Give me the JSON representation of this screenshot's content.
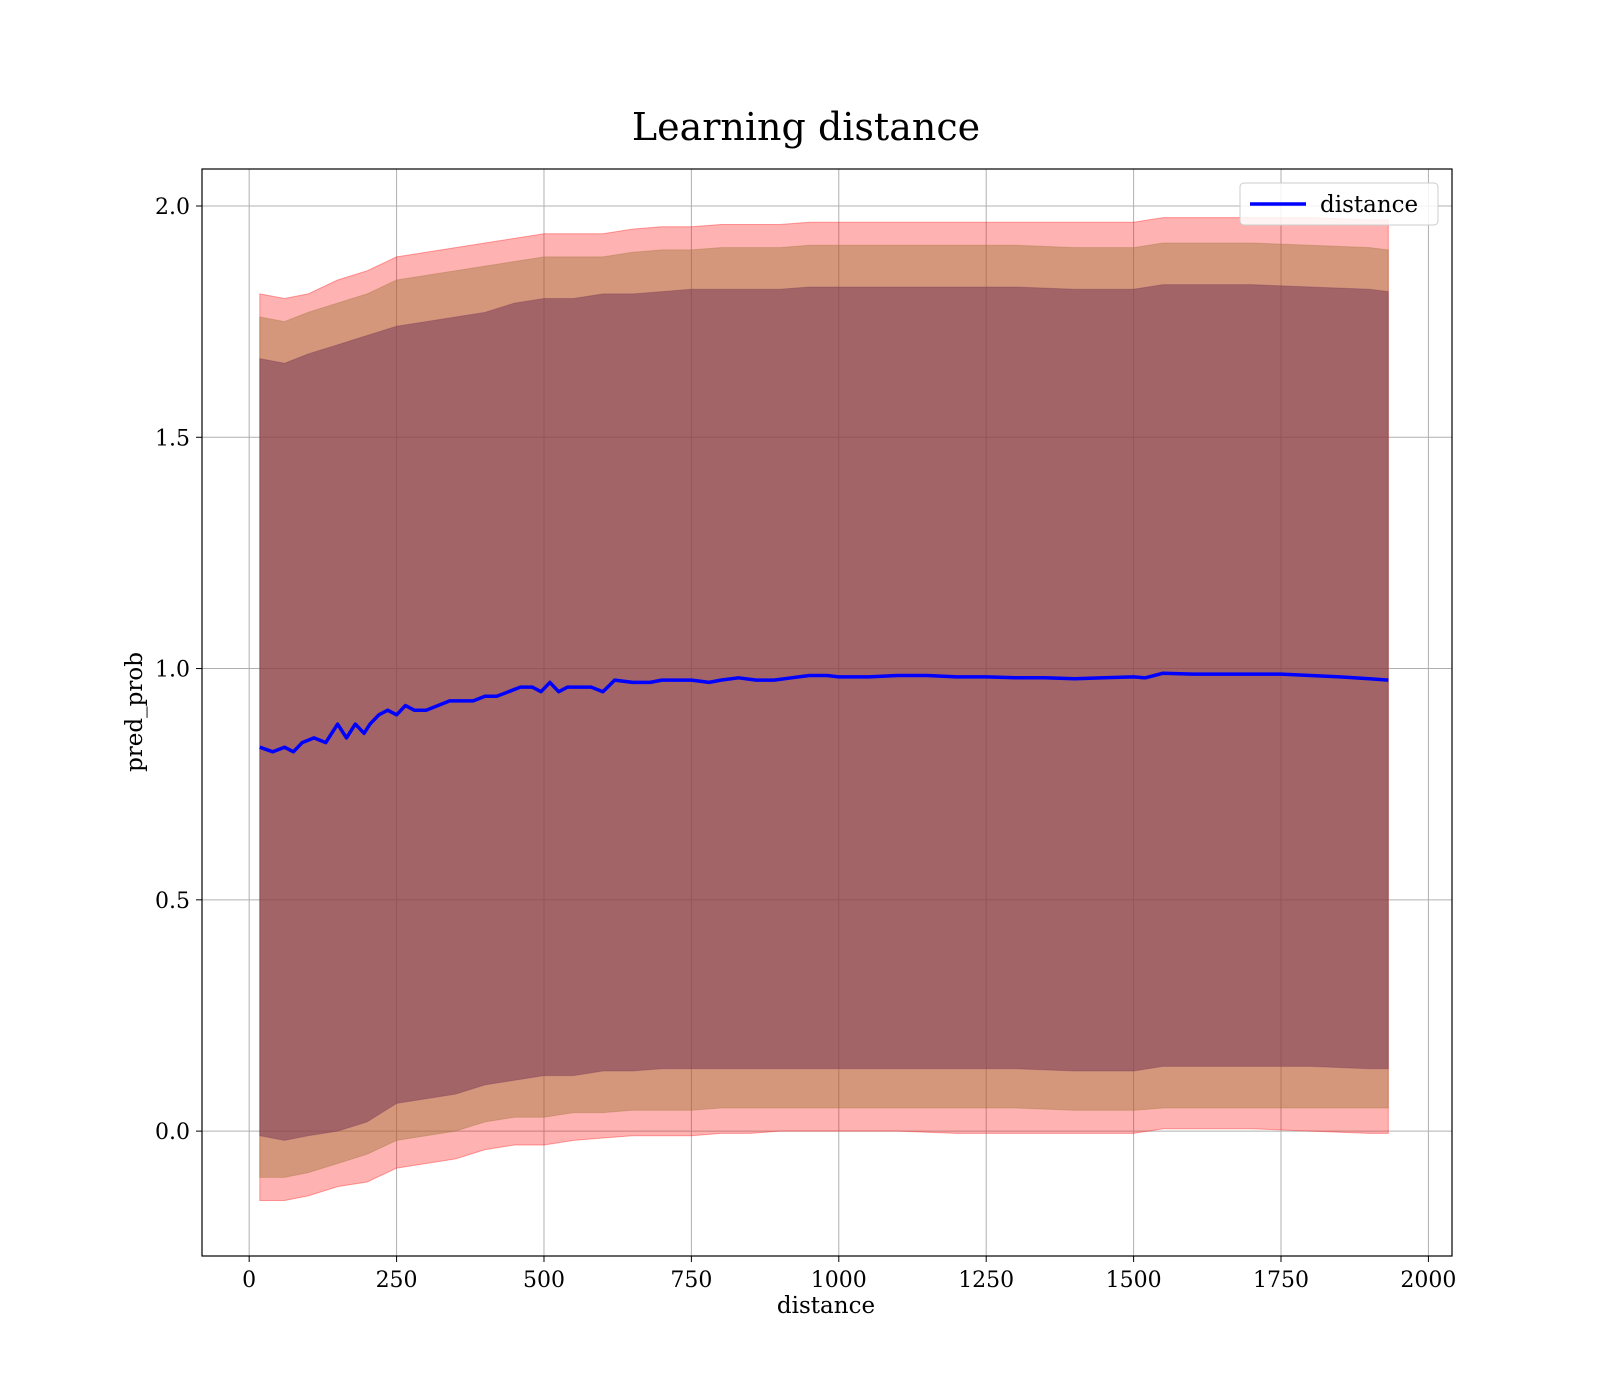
{
  "chart_data": {
    "type": "line",
    "title": "Learning distance",
    "xlabel": "distance",
    "ylabel": "pred_prob",
    "xlim": [
      -80,
      2040
    ],
    "ylim": [
      -0.27,
      2.08
    ],
    "grid": true,
    "legend_position": "top-right",
    "x_ticks": [
      0,
      250,
      500,
      750,
      1000,
      1250,
      1500,
      1750,
      2000
    ],
    "y_ticks": [
      0.0,
      0.5,
      1.0,
      1.5,
      2.0
    ],
    "x_tick_labels": [
      "0",
      "250",
      "500",
      "750",
      "1000",
      "1250",
      "1500",
      "1750",
      "2000"
    ],
    "y_tick_labels": [
      "0.0",
      "0.5",
      "1.0",
      "1.5",
      "2.0"
    ],
    "series": [
      {
        "name": "distance",
        "color": "#0000ff",
        "x": [
          18,
          40,
          60,
          75,
          90,
          110,
          130,
          150,
          165,
          180,
          195,
          205,
          220,
          235,
          250,
          265,
          280,
          300,
          320,
          340,
          360,
          380,
          400,
          420,
          440,
          460,
          480,
          495,
          510,
          525,
          540,
          560,
          580,
          600,
          620,
          650,
          680,
          700,
          720,
          750,
          780,
          800,
          830,
          860,
          890,
          920,
          950,
          980,
          1000,
          1050,
          1100,
          1150,
          1200,
          1250,
          1300,
          1350,
          1400,
          1450,
          1500,
          1520,
          1550,
          1600,
          1650,
          1700,
          1750,
          1800,
          1850,
          1900,
          1932
        ],
        "y": [
          0.83,
          0.82,
          0.83,
          0.82,
          0.84,
          0.85,
          0.84,
          0.88,
          0.85,
          0.88,
          0.86,
          0.88,
          0.9,
          0.91,
          0.9,
          0.92,
          0.91,
          0.91,
          0.92,
          0.93,
          0.93,
          0.93,
          0.94,
          0.94,
          0.95,
          0.96,
          0.96,
          0.95,
          0.97,
          0.95,
          0.96,
          0.96,
          0.96,
          0.95,
          0.975,
          0.97,
          0.97,
          0.975,
          0.975,
          0.975,
          0.97,
          0.975,
          0.98,
          0.975,
          0.975,
          0.98,
          0.985,
          0.985,
          0.982,
          0.982,
          0.985,
          0.985,
          0.982,
          0.982,
          0.98,
          0.98,
          0.978,
          0.98,
          0.982,
          0.98,
          0.99,
          0.988,
          0.988,
          0.988,
          0.988,
          0.985,
          0.982,
          0.978,
          0.975
        ]
      }
    ],
    "bands": [
      {
        "color": "#ff0000",
        "opacity": 0.3,
        "x": [
          18,
          60,
          100,
          150,
          200,
          250,
          300,
          350,
          400,
          450,
          500,
          550,
          600,
          650,
          700,
          750,
          800,
          850,
          900,
          950,
          1000,
          1100,
          1200,
          1300,
          1400,
          1500,
          1550,
          1600,
          1700,
          1800,
          1900,
          1932
        ],
        "upper": [
          1.81,
          1.8,
          1.81,
          1.84,
          1.86,
          1.89,
          1.9,
          1.91,
          1.92,
          1.93,
          1.94,
          1.94,
          1.94,
          1.95,
          1.955,
          1.955,
          1.96,
          1.96,
          1.96,
          1.965,
          1.965,
          1.965,
          1.965,
          1.965,
          1.965,
          1.965,
          1.975,
          1.975,
          1.975,
          1.975,
          1.97,
          1.97
        ],
        "lower": [
          -0.15,
          -0.15,
          -0.14,
          -0.12,
          -0.11,
          -0.08,
          -0.07,
          -0.06,
          -0.04,
          -0.03,
          -0.03,
          -0.02,
          -0.015,
          -0.01,
          -0.01,
          -0.01,
          -0.005,
          -0.005,
          0.0,
          0.0,
          0.0,
          0.0,
          -0.005,
          -0.005,
          -0.005,
          -0.005,
          0.005,
          0.005,
          0.005,
          0.0,
          -0.005,
          -0.005
        ]
      },
      {
        "color": "#a0753a",
        "opacity": 0.45,
        "x": [
          18,
          60,
          100,
          150,
          200,
          250,
          300,
          350,
          400,
          450,
          500,
          550,
          600,
          650,
          700,
          750,
          800,
          850,
          900,
          950,
          1000,
          1100,
          1200,
          1300,
          1400,
          1500,
          1550,
          1600,
          1700,
          1800,
          1900,
          1932
        ],
        "upper": [
          1.76,
          1.75,
          1.77,
          1.79,
          1.81,
          1.84,
          1.85,
          1.86,
          1.87,
          1.88,
          1.89,
          1.89,
          1.89,
          1.9,
          1.905,
          1.905,
          1.91,
          1.91,
          1.91,
          1.915,
          1.915,
          1.915,
          1.915,
          1.915,
          1.91,
          1.91,
          1.92,
          1.92,
          1.92,
          1.915,
          1.91,
          1.905
        ],
        "lower": [
          -0.1,
          -0.1,
          -0.09,
          -0.07,
          -0.05,
          -0.02,
          -0.01,
          0.0,
          0.02,
          0.03,
          0.03,
          0.04,
          0.04,
          0.045,
          0.045,
          0.045,
          0.05,
          0.05,
          0.05,
          0.05,
          0.05,
          0.05,
          0.05,
          0.05,
          0.045,
          0.045,
          0.05,
          0.05,
          0.05,
          0.05,
          0.05,
          0.05
        ]
      },
      {
        "color": "#7a3a55",
        "opacity": 0.55,
        "x": [
          18,
          60,
          100,
          150,
          200,
          250,
          300,
          350,
          400,
          450,
          500,
          550,
          600,
          650,
          700,
          750,
          800,
          850,
          900,
          950,
          1000,
          1100,
          1200,
          1300,
          1400,
          1500,
          1550,
          1600,
          1700,
          1800,
          1900,
          1932
        ],
        "upper": [
          1.67,
          1.66,
          1.68,
          1.7,
          1.72,
          1.74,
          1.75,
          1.76,
          1.77,
          1.79,
          1.8,
          1.8,
          1.81,
          1.81,
          1.815,
          1.82,
          1.82,
          1.82,
          1.82,
          1.825,
          1.825,
          1.825,
          1.825,
          1.825,
          1.82,
          1.82,
          1.83,
          1.83,
          1.83,
          1.825,
          1.82,
          1.815
        ],
        "lower": [
          -0.01,
          -0.02,
          -0.01,
          0.0,
          0.02,
          0.06,
          0.07,
          0.08,
          0.1,
          0.11,
          0.12,
          0.12,
          0.13,
          0.13,
          0.135,
          0.135,
          0.135,
          0.135,
          0.135,
          0.135,
          0.135,
          0.135,
          0.135,
          0.135,
          0.13,
          0.13,
          0.14,
          0.14,
          0.14,
          0.14,
          0.135,
          0.135
        ]
      }
    ]
  }
}
